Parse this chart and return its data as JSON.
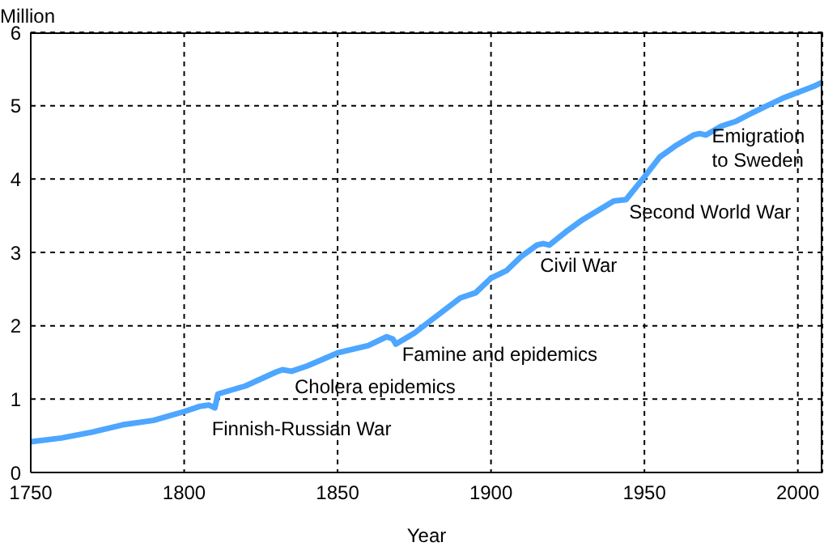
{
  "chart_data": {
    "type": "line",
    "xlabel": "Year",
    "ylabel": "Million",
    "x": [
      1750,
      1760,
      1770,
      1780,
      1790,
      1800,
      1805,
      1808,
      1810,
      1811,
      1820,
      1830,
      1832,
      1835,
      1840,
      1850,
      1855,
      1860,
      1866,
      1868,
      1869,
      1875,
      1880,
      1890,
      1895,
      1900,
      1905,
      1910,
      1915,
      1917,
      1919,
      1925,
      1930,
      1940,
      1944,
      1950,
      1955,
      1960,
      1966,
      1968,
      1970,
      1975,
      1980,
      1985,
      1990,
      1995,
      2000,
      2005,
      2008
    ],
    "series": [
      {
        "color": "#4da6ff",
        "values": [
          0.42,
          0.47,
          0.55,
          0.65,
          0.71,
          0.83,
          0.9,
          0.92,
          0.88,
          1.07,
          1.18,
          1.37,
          1.4,
          1.38,
          1.45,
          1.63,
          1.68,
          1.73,
          1.85,
          1.82,
          1.75,
          1.9,
          2.06,
          2.38,
          2.45,
          2.65,
          2.75,
          2.95,
          3.1,
          3.12,
          3.1,
          3.3,
          3.45,
          3.7,
          3.72,
          4.03,
          4.3,
          4.45,
          4.6,
          4.62,
          4.6,
          4.72,
          4.79,
          4.9,
          5.0,
          5.1,
          5.18,
          5.26,
          5.32
        ]
      }
    ],
    "xlim": [
      1750,
      2008
    ],
    "xticks": [
      1750,
      1800,
      1850,
      1900,
      1950,
      2000
    ],
    "ylim": [
      0,
      6
    ],
    "yticks": [
      0,
      1,
      2,
      3,
      4,
      5,
      6
    ],
    "grid": true,
    "line_style": "solid",
    "marker": "none",
    "legend": false,
    "annotations": [
      "Finnish-Russian War",
      "Cholera epidemics",
      "Famine and epidemics",
      "Civil War",
      "Second World War",
      "Emigration\nto Sweden"
    ]
  }
}
